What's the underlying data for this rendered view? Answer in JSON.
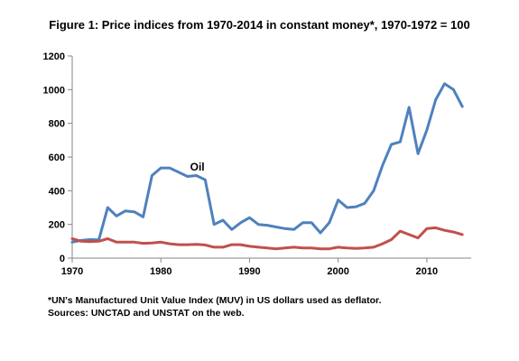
{
  "chart_data": {
    "type": "line",
    "title": "Figure 1: Price indices from 1970-2014 in constant money*, 1970-1972 = 100",
    "xlabel": "",
    "ylabel": "",
    "xlim": [
      1970,
      2015
    ],
    "ylim": [
      0,
      1200
    ],
    "x_ticks": [
      1970,
      1980,
      1990,
      2000,
      2010
    ],
    "y_ticks": [
      0,
      200,
      400,
      600,
      800,
      1000,
      1200
    ],
    "grid": false,
    "legend": "none",
    "x": [
      1970,
      1971,
      1972,
      1973,
      1974,
      1975,
      1976,
      1977,
      1978,
      1979,
      1980,
      1981,
      1982,
      1983,
      1984,
      1985,
      1986,
      1987,
      1988,
      1989,
      1990,
      1991,
      1992,
      1993,
      1994,
      1995,
      1996,
      1997,
      1998,
      1999,
      2000,
      2001,
      2002,
      2003,
      2004,
      2005,
      2006,
      2007,
      2008,
      2009,
      2010,
      2011,
      2012,
      2013,
      2014
    ],
    "series": [
      {
        "name": "Oil",
        "color": "#4F81BD",
        "values": [
          95,
          105,
          110,
          108,
          300,
          250,
          280,
          275,
          245,
          490,
          535,
          535,
          510,
          485,
          490,
          465,
          200,
          225,
          170,
          210,
          240,
          200,
          195,
          185,
          175,
          170,
          210,
          210,
          150,
          210,
          345,
          300,
          305,
          325,
          400,
          550,
          675,
          690,
          895,
          620,
          760,
          940,
          1035,
          1000,
          900
        ]
      },
      {
        "name": "",
        "color": "#C0504D",
        "values": [
          115,
          100,
          98,
          100,
          115,
          95,
          95,
          95,
          88,
          90,
          95,
          85,
          80,
          80,
          82,
          78,
          65,
          65,
          80,
          80,
          70,
          65,
          60,
          55,
          60,
          65,
          60,
          60,
          55,
          55,
          65,
          60,
          58,
          60,
          65,
          85,
          110,
          160,
          140,
          120,
          175,
          180,
          165,
          155,
          140
        ]
      }
    ],
    "annotations": [
      {
        "text": "Oil",
        "x": 1983.3,
        "y": 520
      }
    ]
  },
  "footnote": {
    "line1": "*UN's  Manufactured  Unit Value Index (MUV) in US dollars used as deflator.",
    "line2": "Sources: UNCTAD and UNSTAT on the web."
  }
}
